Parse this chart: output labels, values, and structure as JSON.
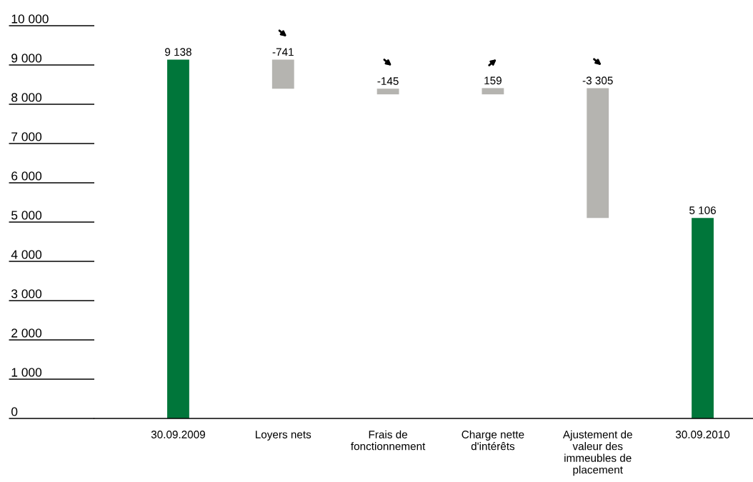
{
  "chart_data": {
    "type": "bar",
    "categories": [
      "30.09.2009",
      "Loyers nets",
      "Frais de\nfonctionnement",
      "Charge nette\nd'intérêts",
      "Ajustement de\nvaleur des\nimmeubles de\nplacement",
      "30.09.2010"
    ],
    "values": [
      9138,
      -741,
      -145,
      159,
      -3305,
      5106
    ],
    "base": [
      0,
      9138,
      8397,
      8252,
      8411,
      0
    ],
    "colors": [
      "#00763a",
      "#b5b4b0",
      "#b5b4b0",
      "#b5b4b0",
      "#b5b4b0",
      "#00763a"
    ],
    "value_labels": [
      "9 138",
      "-741",
      "-145",
      "159",
      "-3 305",
      "5 106"
    ],
    "ylim": [
      0,
      10000
    ],
    "yticks": [
      {
        "value": 0,
        "label": "0"
      },
      {
        "value": 1000,
        "label": "1 000"
      },
      {
        "value": 2000,
        "label": "2 000"
      },
      {
        "value": 3000,
        "label": "3 000"
      },
      {
        "value": 4000,
        "label": "4 000"
      },
      {
        "value": 5000,
        "label": "5 000"
      },
      {
        "value": 6000,
        "label": "6 000"
      },
      {
        "value": 7000,
        "label": "7 000"
      },
      {
        "value": 8000,
        "label": "8 000"
      },
      {
        "value": 9000,
        "label": "9 000"
      },
      {
        "value": 10000,
        "label": "10 000"
      }
    ],
    "grid": false
  }
}
